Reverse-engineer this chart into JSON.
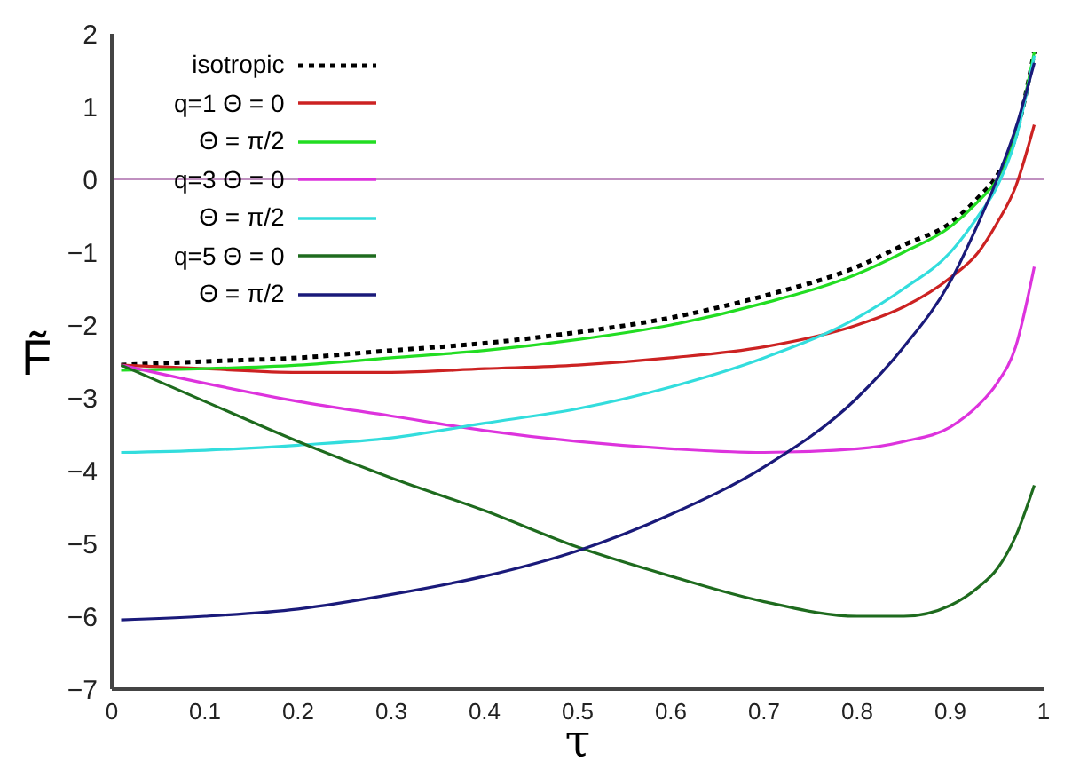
{
  "chart_data": {
    "type": "line",
    "xlabel": "τ",
    "ylabel": "F̃",
    "x": [
      0.01,
      0.1,
      0.2,
      0.3,
      0.4,
      0.5,
      0.6,
      0.7,
      0.8,
      0.85,
      0.9,
      0.93,
      0.95,
      0.97,
      0.99
    ],
    "series": [
      {
        "name": "isotropic",
        "color": "#000000",
        "line_style": "dotted",
        "values": [
          -2.55,
          -2.5,
          -2.45,
          -2.35,
          -2.25,
          -2.1,
          -1.9,
          -1.6,
          -1.2,
          -0.9,
          -0.6,
          -0.25,
          0.05,
          0.6,
          1.75
        ]
      },
      {
        "name": "q=1 Θ = 0",
        "color": "#cc2222",
        "values": [
          -2.55,
          -2.6,
          -2.65,
          -2.65,
          -2.6,
          -2.55,
          -2.45,
          -2.3,
          -2.0,
          -1.75,
          -1.35,
          -1.0,
          -0.6,
          -0.1,
          0.75
        ]
      },
      {
        "name": "Θ = π/2",
        "color": "#22dd22",
        "values": [
          -2.62,
          -2.6,
          -2.55,
          -2.45,
          -2.35,
          -2.2,
          -2.0,
          -1.7,
          -1.3,
          -1.0,
          -0.65,
          -0.3,
          0.0,
          0.6,
          1.75
        ]
      },
      {
        "name": "q=3 Θ = 0",
        "color": "#dd33dd",
        "values": [
          -2.55,
          -2.8,
          -3.05,
          -3.25,
          -3.45,
          -3.6,
          -3.7,
          -3.75,
          -3.7,
          -3.6,
          -3.4,
          -3.1,
          -2.8,
          -2.3,
          -1.2
        ]
      },
      {
        "name": "Θ = π/2",
        "color": "#33dddd",
        "values": [
          -3.75,
          -3.72,
          -3.65,
          -3.55,
          -3.35,
          -3.15,
          -2.85,
          -2.45,
          -1.9,
          -1.5,
          -1.0,
          -0.5,
          -0.1,
          0.55,
          1.7
        ]
      },
      {
        "name": "q=5 Θ = 0",
        "color": "#1e6b1e",
        "values": [
          -2.55,
          -3.05,
          -3.6,
          -4.1,
          -4.55,
          -5.05,
          -5.45,
          -5.8,
          -6.0,
          -6.0,
          -5.85,
          -5.6,
          -5.35,
          -4.9,
          -4.2
        ]
      },
      {
        "name": "Θ = π/2",
        "color": "#1a1a7a",
        "values": [
          -6.05,
          -6.0,
          -5.9,
          -5.7,
          -5.45,
          -5.1,
          -4.6,
          -3.95,
          -3.0,
          -2.3,
          -1.4,
          -0.6,
          0.0,
          0.7,
          1.6
        ]
      }
    ],
    "xlim": [
      0,
      1
    ],
    "xticks": [
      0,
      0.1,
      0.2,
      0.3,
      0.4,
      0.5,
      0.6,
      0.7,
      0.8,
      0.9,
      1
    ],
    "ylim": [
      -7,
      2
    ],
    "yticks": [
      -7,
      -6,
      -5,
      -4,
      -3,
      -2,
      -1,
      0,
      1,
      2
    ],
    "ref_lines": [
      {
        "axis": "y",
        "value": 0,
        "color": "#c090c0"
      }
    ],
    "grid": false,
    "legend": "top left",
    "marker": "none"
  }
}
